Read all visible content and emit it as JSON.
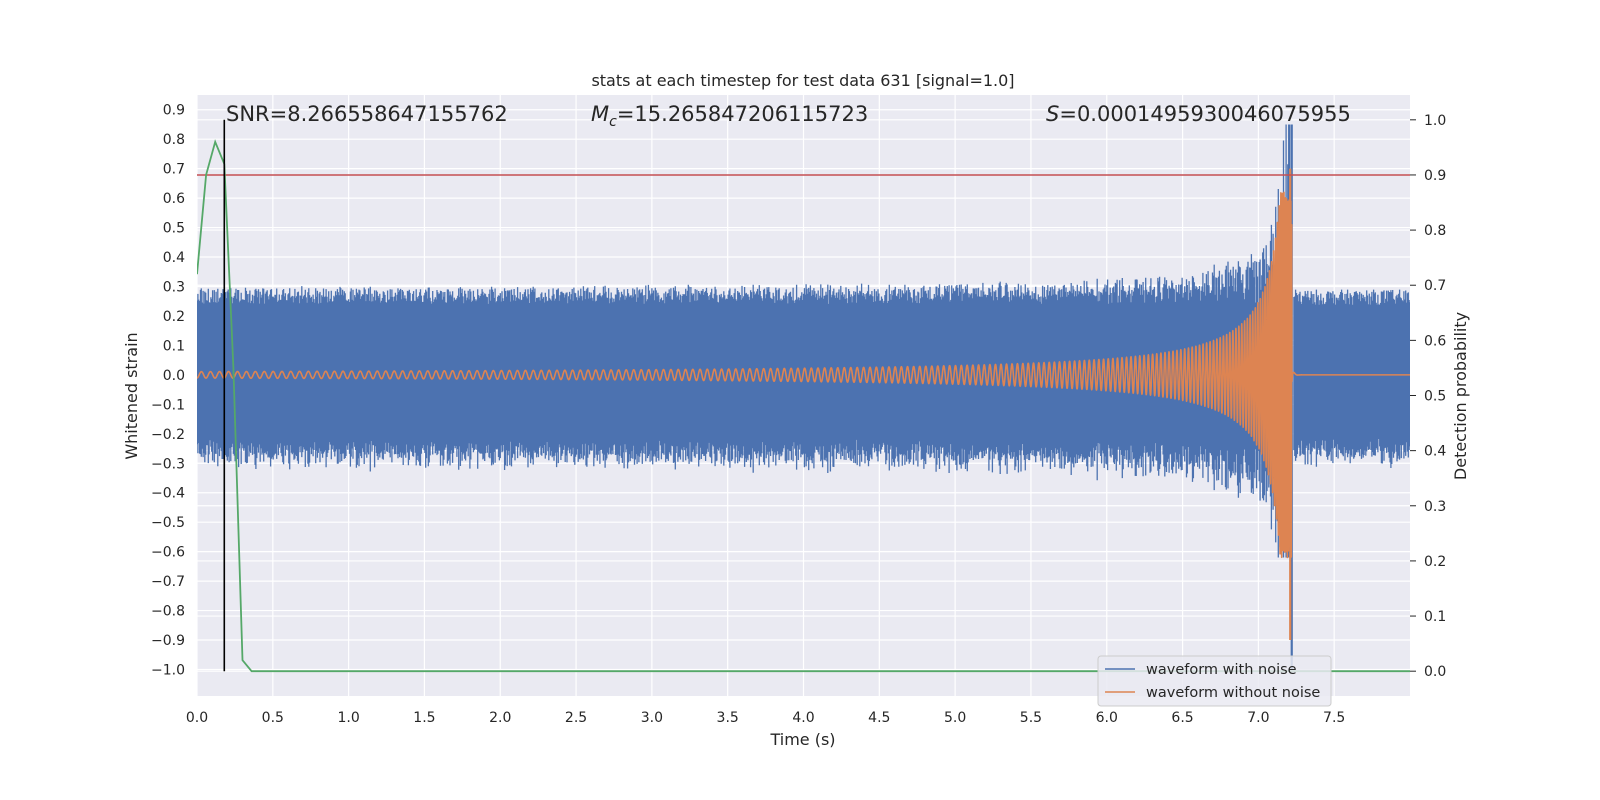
{
  "chart_data": {
    "type": "line",
    "title": "stats at each timestep for test data 631 [signal=1.0]",
    "xlabel": "Time (s)",
    "ylabel_left": "Whitened strain",
    "ylabel_right": "Detection probability",
    "xlim": [
      0.0,
      8.0
    ],
    "ylim_left": [
      -1.09,
      0.95
    ],
    "ylim_right": [
      -0.045,
      1.045
    ],
    "x_ticks": [
      0.0,
      0.5,
      1.0,
      1.5,
      2.0,
      2.5,
      3.0,
      3.5,
      4.0,
      4.5,
      5.0,
      5.5,
      6.0,
      6.5,
      7.0,
      7.5
    ],
    "x_tick_labels": [
      "0.0",
      "0.5",
      "1.0",
      "1.5",
      "2.0",
      "2.5",
      "3.0",
      "3.5",
      "4.0",
      "4.5",
      "5.0",
      "5.5",
      "6.0",
      "6.5",
      "7.0",
      "7.5"
    ],
    "y_left_ticks": [
      0.9,
      0.8,
      0.7,
      0.6,
      0.5,
      0.4,
      0.3,
      0.2,
      0.1,
      0.0,
      -0.1,
      -0.2,
      -0.3,
      -0.4,
      -0.5,
      -0.6,
      -0.7,
      -0.8,
      -0.9,
      -1.0
    ],
    "y_left_tick_labels": [
      "0.9",
      "0.8",
      "0.7",
      "0.6",
      "0.5",
      "0.4",
      "0.3",
      "0.2",
      "0.1",
      "0.0",
      "−0.1",
      "−0.2",
      "−0.3",
      "−0.4",
      "−0.5",
      "−0.6",
      "−0.7",
      "−0.8",
      "−0.9",
      "−1.0"
    ],
    "y_right_ticks": [
      1.0,
      0.9,
      0.8,
      0.7,
      0.6,
      0.5,
      0.4,
      0.3,
      0.2,
      0.1,
      0.0
    ],
    "y_right_tick_labels": [
      "1.0",
      "0.9",
      "0.8",
      "0.7",
      "0.6",
      "0.5",
      "0.4",
      "0.3",
      "0.2",
      "0.1",
      "0.0"
    ],
    "grid": true,
    "legend_position": "lower right",
    "annotations": {
      "snr": "SNR=8.266558647155762",
      "mc_value": "=15.265847206115723",
      "s_value": "=0.0001495930046075955"
    },
    "series": [
      {
        "name": "waveform with noise",
        "color": "#4c72b0",
        "axis": "left",
        "description_values": {
          "t_start": 0.0,
          "t_end": 8.0,
          "noise_band": [
            -0.29,
            0.29
          ],
          "merger_time": 7.22,
          "peak_max": 0.85,
          "peak_min": -1.0
        }
      },
      {
        "name": "waveform without noise",
        "color": "#dd8452",
        "axis": "left",
        "description_values": {
          "t_start": 0.0,
          "t_end": 8.0,
          "initial_amplitude": 0.01,
          "merger_time": 7.22,
          "peak_max": 0.7,
          "peak_min": -0.9
        }
      },
      {
        "color": "#55a868",
        "axis": "right",
        "x": [
          0.0,
          0.06,
          0.12,
          0.18,
          0.24,
          0.3,
          0.36,
          0.42,
          0.5,
          1.0,
          2.0,
          3.0,
          4.0,
          5.0,
          6.0,
          7.0,
          7.5,
          8.0
        ],
        "y": [
          0.72,
          0.9,
          0.96,
          0.92,
          0.55,
          0.02,
          0.0,
          0.0,
          0.0,
          0.0,
          0.0,
          0.0,
          0.0,
          0.0,
          0.0,
          0.0,
          0.0,
          0.0
        ]
      }
    ],
    "hlines": [
      {
        "axis": "right",
        "y": 0.9,
        "color": "#c44e52"
      }
    ],
    "vlines": [
      {
        "x": 0.18,
        "color": "#000000",
        "ymin_right": 0.0,
        "ymax_right": 1.0
      }
    ]
  }
}
